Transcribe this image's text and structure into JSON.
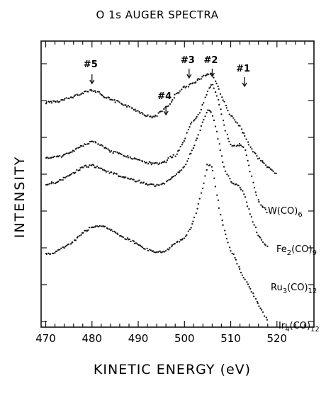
{
  "chart_data": {
    "type": "line",
    "title": "O 1s AUGER SPECTRA",
    "xlabel": "KINETIC ENERGY (eV)",
    "ylabel": "INTENSITY",
    "xlim": [
      469,
      528
    ],
    "ylim": [
      0,
      1
    ],
    "x_ticks": [
      470,
      480,
      490,
      500,
      510,
      520
    ],
    "x_tick_labels": [
      "470",
      "480",
      "490",
      "500",
      "510",
      "520"
    ],
    "grid": false,
    "legend": "none",
    "peak_labels": [
      {
        "label": "#5",
        "x": 480
      },
      {
        "label": "#4",
        "x": 496
      },
      {
        "label": "#3",
        "x": 501
      },
      {
        "label": "#2",
        "x": 506
      },
      {
        "label": "#1",
        "x": 513
      }
    ],
    "series": [
      {
        "name": "W(CO)6",
        "name_main": "W(CO)",
        "name_sub": "6",
        "x": [
          470,
          473,
          476,
          478,
          480,
          482,
          484,
          486,
          488,
          490,
          492,
          493,
          494,
          496,
          497,
          498,
          500,
          501,
          502,
          503,
          504,
          505,
          506,
          507,
          508,
          509,
          510,
          511,
          512,
          513,
          514,
          515,
          516,
          518,
          520
        ],
        "y": [
          0.785,
          0.79,
          0.805,
          0.82,
          0.83,
          0.815,
          0.795,
          0.785,
          0.77,
          0.755,
          0.738,
          0.734,
          0.74,
          0.77,
          0.78,
          0.81,
          0.84,
          0.845,
          0.855,
          0.865,
          0.875,
          0.885,
          0.885,
          0.85,
          0.81,
          0.77,
          0.74,
          0.72,
          0.7,
          0.67,
          0.64,
          0.61,
          0.59,
          0.56,
          0.535
        ]
      },
      {
        "name": "Fe2(CO)9",
        "name_main": "Fe",
        "name_sub": "2",
        "name_main2": "(CO)",
        "name_sub2": "9",
        "x": [
          470,
          473,
          476,
          478,
          480,
          482,
          484,
          486,
          488,
          490,
          492,
          494,
          496,
          497,
          498,
          500,
          501,
          502,
          503,
          504,
          505,
          506,
          507,
          508,
          509,
          510,
          511,
          512,
          513,
          514,
          515,
          516,
          518
        ],
        "y": [
          0.59,
          0.595,
          0.615,
          0.635,
          0.65,
          0.635,
          0.615,
          0.605,
          0.595,
          0.585,
          0.575,
          0.57,
          0.578,
          0.595,
          0.6,
          0.65,
          0.7,
          0.72,
          0.74,
          0.78,
          0.825,
          0.85,
          0.81,
          0.75,
          0.68,
          0.64,
          0.63,
          0.64,
          0.625,
          0.56,
          0.49,
          0.44,
          0.4
        ]
      },
      {
        "name": "Ru3(CO)12",
        "name_main": "Ru",
        "name_sub": "3",
        "name_main2": "(CO)",
        "name_sub2": "12",
        "x": [
          470,
          472,
          474,
          476,
          478,
          480,
          482,
          484,
          486,
          488,
          490,
          492,
          494,
          496,
          497,
          498,
          500,
          501,
          502,
          503,
          504,
          505,
          506,
          507,
          508,
          509,
          510,
          511,
          512,
          513,
          514,
          515,
          516,
          518
        ],
        "y": [
          0.5,
          0.505,
          0.52,
          0.54,
          0.56,
          0.565,
          0.555,
          0.54,
          0.53,
          0.52,
          0.51,
          0.5,
          0.495,
          0.505,
          0.52,
          0.53,
          0.56,
          0.6,
          0.63,
          0.67,
          0.72,
          0.76,
          0.75,
          0.68,
          0.6,
          0.54,
          0.51,
          0.5,
          0.49,
          0.46,
          0.41,
          0.36,
          0.32,
          0.28
        ]
      },
      {
        "name": "Ir4(CO)12",
        "name_main": "Ir",
        "name_sub": "4",
        "name_main2": "(CO)",
        "name_sub2": "12",
        "x": [
          470,
          472,
          474,
          476,
          478,
          480,
          482,
          484,
          486,
          488,
          490,
          492,
          494,
          496,
          498,
          500,
          501,
          502,
          503,
          504,
          505,
          506,
          507,
          508,
          509,
          510,
          511,
          512,
          514,
          516,
          518
        ],
        "y": [
          0.255,
          0.26,
          0.28,
          0.3,
          0.33,
          0.35,
          0.355,
          0.34,
          0.32,
          0.305,
          0.29,
          0.27,
          0.26,
          0.265,
          0.29,
          0.31,
          0.34,
          0.37,
          0.43,
          0.49,
          0.57,
          0.56,
          0.46,
          0.38,
          0.32,
          0.27,
          0.24,
          0.2,
          0.14,
          0.08,
          0.02
        ]
      }
    ]
  }
}
